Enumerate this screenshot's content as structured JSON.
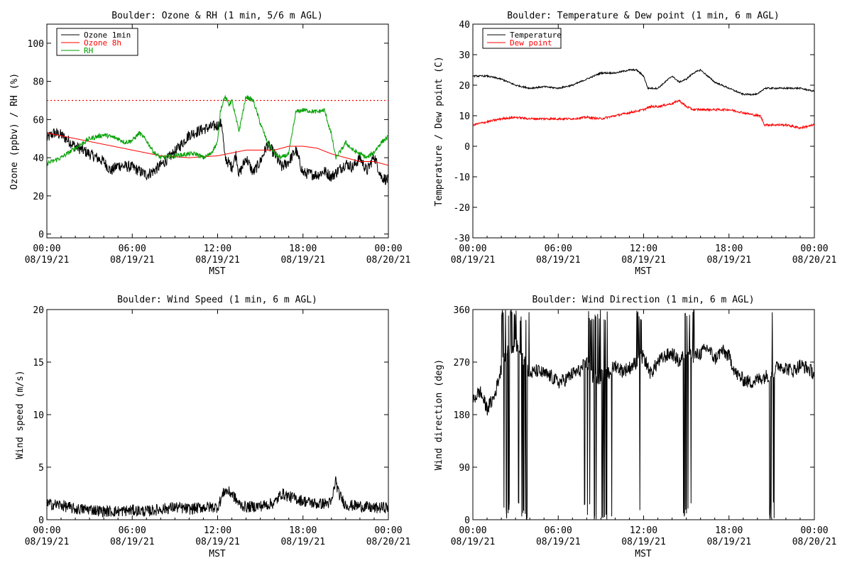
{
  "chart_data": [
    {
      "id": "ozone_rh",
      "type": "line",
      "title": "Boulder: Ozone & RH (1 min, 5/6 m AGL)",
      "xlabel": "MST",
      "ylabel": "Ozone (ppbv) / RH (%)",
      "xlim": [
        0,
        24
      ],
      "ylim": [
        -2,
        110
      ],
      "yticks": [
        0,
        20,
        40,
        60,
        80,
        100
      ],
      "xticks": [
        {
          "time": "00:00",
          "date": "08/19/21"
        },
        {
          "time": "06:00",
          "date": "08/19/21"
        },
        {
          "time": "12:00",
          "date": "08/19/21"
        },
        {
          "time": "18:00",
          "date": "08/19/21"
        },
        {
          "time": "00:00",
          "date": "08/20/21"
        }
      ],
      "legend_position": "top-left",
      "reference_line": {
        "y": 70,
        "color": "#ff0000",
        "style": "dotted"
      },
      "series": [
        {
          "name": "Ozone 1min",
          "color": "#000000",
          "noise": 3,
          "x": [
            0,
            0.5,
            1,
            2,
            3,
            4,
            4.5,
            5,
            6,
            7,
            7.5,
            8,
            9,
            10,
            11,
            12,
            12.3,
            12.5,
            13,
            13.3,
            13.5,
            14,
            14.5,
            15,
            15.5,
            16,
            16.5,
            17,
            17.5,
            18,
            19,
            19.5,
            20,
            21,
            21.5,
            22,
            22.5,
            23,
            23.5,
            24
          ],
          "y": [
            50,
            53,
            52,
            46,
            42,
            38,
            33,
            36,
            35,
            31,
            33,
            36,
            43,
            52,
            55,
            57,
            58,
            40,
            35,
            42,
            31,
            40,
            32,
            38,
            47,
            42,
            35,
            38,
            44,
            32,
            31,
            33,
            30,
            37,
            35,
            40,
            33,
            41,
            30,
            28
          ]
        },
        {
          "name": "Ozone 8h",
          "color": "#ff0000",
          "noise": 0,
          "x": [
            0,
            2,
            4,
            6,
            8,
            10,
            12,
            14,
            16,
            17,
            18,
            19,
            20,
            21,
            22,
            23,
            24
          ],
          "y": [
            53,
            50,
            47,
            44,
            41,
            40,
            41,
            44,
            44,
            46,
            46,
            45,
            42,
            40,
            38,
            38,
            36
          ]
        },
        {
          "name": "RH",
          "color": "#00a000",
          "noise": 1.2,
          "x": [
            0,
            1,
            2,
            3,
            4,
            5,
            5.5,
            6,
            6.5,
            7,
            7.5,
            8,
            9,
            10,
            10.5,
            11,
            11.5,
            12,
            12.2,
            12.5,
            12.8,
            13,
            13.3,
            13.5,
            14,
            14.5,
            15,
            15.5,
            16,
            16.5,
            17,
            17.5,
            18,
            19,
            19.5,
            20,
            20.3,
            20.7,
            21,
            21.5,
            22,
            22.5,
            23,
            23.5,
            24
          ],
          "y": [
            37,
            40,
            45,
            50,
            52,
            50,
            48,
            49,
            53,
            49,
            43,
            40,
            41,
            42,
            42,
            40,
            42,
            48,
            65,
            72,
            68,
            70,
            60,
            54,
            72,
            70,
            58,
            48,
            42,
            40,
            42,
            64,
            65,
            64,
            65,
            52,
            40,
            44,
            48,
            44,
            42,
            40,
            43,
            48,
            51
          ]
        }
      ]
    },
    {
      "id": "temp_dew",
      "type": "line",
      "title": "Boulder: Temperature & Dew point (1 min, 6 m AGL)",
      "xlabel": "MST",
      "ylabel": "Temperature / Dew point (C)",
      "xlim": [
        0,
        24
      ],
      "ylim": [
        -30,
        40
      ],
      "yticks": [
        -30,
        -20,
        -10,
        0,
        10,
        20,
        30,
        40
      ],
      "xticks": [
        {
          "time": "00:00",
          "date": "08/19/21"
        },
        {
          "time": "06:00",
          "date": "08/19/21"
        },
        {
          "time": "12:00",
          "date": "08/19/21"
        },
        {
          "time": "18:00",
          "date": "08/19/21"
        },
        {
          "time": "00:00",
          "date": "08/20/21"
        }
      ],
      "legend_position": "top-left",
      "series": [
        {
          "name": "Temperature",
          "color": "#000000",
          "noise": 0.25,
          "x": [
            0,
            1,
            2,
            3,
            4,
            5,
            6,
            7,
            8,
            9,
            10,
            11,
            11.5,
            12,
            12.3,
            13,
            13.5,
            14,
            14.5,
            15,
            15.5,
            16,
            16.5,
            17,
            18,
            19,
            20,
            20.5,
            21,
            22,
            23,
            24
          ],
          "y": [
            23,
            23,
            22,
            20,
            19,
            19.5,
            19,
            20,
            22,
            24,
            24,
            25,
            25,
            23,
            19,
            19,
            21,
            23,
            21,
            22,
            24,
            25,
            23,
            21,
            19,
            17,
            17,
            19,
            19,
            19,
            19,
            18
          ]
        },
        {
          "name": "Dew point",
          "color": "#ff0000",
          "noise": 0.35,
          "x": [
            0,
            1,
            2,
            3,
            4,
            5,
            6,
            7,
            8,
            9,
            10,
            11,
            12,
            12.5,
            13,
            14,
            14.5,
            15,
            15.5,
            16,
            17,
            18,
            19,
            20,
            20.2,
            20.5,
            21,
            22,
            23,
            24
          ],
          "y": [
            7,
            8,
            9,
            9.5,
            9,
            9,
            9,
            9,
            9.5,
            9,
            10,
            11,
            12,
            13,
            13,
            14,
            15,
            13,
            12,
            12,
            12,
            12,
            11,
            10,
            10,
            7,
            7,
            7,
            6,
            7
          ]
        }
      ]
    },
    {
      "id": "wind_speed",
      "type": "line",
      "title": "Boulder: Wind Speed (1 min, 6 m AGL)",
      "xlabel": "MST",
      "ylabel": "Wind speed (m/s)",
      "xlim": [
        0,
        24
      ],
      "ylim": [
        0,
        20
      ],
      "yticks": [
        0,
        5,
        10,
        15,
        20
      ],
      "xticks": [
        {
          "time": "00:00",
          "date": "08/19/21"
        },
        {
          "time": "06:00",
          "date": "08/19/21"
        },
        {
          "time": "12:00",
          "date": "08/19/21"
        },
        {
          "time": "18:00",
          "date": "08/19/21"
        },
        {
          "time": "00:00",
          "date": "08/20/21"
        }
      ],
      "series": [
        {
          "color": "#000000",
          "noise": 0.55,
          "floor": 0,
          "x": [
            0,
            1,
            2,
            3,
            4,
            5,
            6,
            7,
            8,
            9,
            10,
            11,
            12,
            12.5,
            13,
            13.5,
            14,
            15,
            16,
            16.5,
            17,
            18,
            19,
            20,
            20.3,
            20.5,
            21,
            22,
            23,
            24
          ],
          "y": [
            1.5,
            1.4,
            1.0,
            1.0,
            0.8,
            0.8,
            0.9,
            0.8,
            1.0,
            1.2,
            1.0,
            1.2,
            1.2,
            2.8,
            2.5,
            1.5,
            1.2,
            1.3,
            1.6,
            2.5,
            2.2,
            1.8,
            1.5,
            1.6,
            3.8,
            2.5,
            1.4,
            1.3,
            1.1,
            1.2
          ]
        }
      ]
    },
    {
      "id": "wind_direction",
      "type": "line",
      "title": "Boulder: Wind Direction (1 min, 6 m AGL)",
      "xlabel": "MST",
      "ylabel": "Wind direction (deg)",
      "xlim": [
        0,
        24
      ],
      "ylim": [
        0,
        360
      ],
      "yticks": [
        0,
        90,
        180,
        270,
        360
      ],
      "xticks": [
        {
          "time": "00:00",
          "date": "08/19/21"
        },
        {
          "time": "06:00",
          "date": "08/19/21"
        },
        {
          "time": "12:00",
          "date": "08/19/21"
        },
        {
          "time": "18:00",
          "date": "08/19/21"
        },
        {
          "time": "00:00",
          "date": "08/20/21"
        }
      ],
      "series": [
        {
          "color": "#000000",
          "noise": 12,
          "floor": 0,
          "ceil": 360,
          "spike_ranges": [
            [
              2,
              4
            ],
            [
              7.8,
              9.8
            ],
            [
              11.5,
              12.2
            ],
            [
              14.8,
              15.6
            ],
            [
              20.8,
              21.2
            ]
          ],
          "x": [
            0,
            0.5,
            1,
            1.5,
            2,
            2.5,
            3,
            3.5,
            4,
            4.5,
            5,
            5.5,
            6,
            6.5,
            7,
            7.5,
            8,
            8.5,
            9,
            9.5,
            10,
            10.5,
            11,
            11.5,
            12,
            12.5,
            13,
            13.5,
            14,
            14.5,
            15,
            15.5,
            16,
            16.5,
            17,
            17.5,
            18,
            18.5,
            19,
            19.5,
            20,
            20.5,
            21,
            21.5,
            22,
            22.5,
            23,
            23.5,
            24
          ],
          "y": [
            205,
            220,
            190,
            210,
            260,
            290,
            300,
            280,
            250,
            255,
            250,
            245,
            235,
            240,
            250,
            255,
            270,
            240,
            245,
            250,
            265,
            255,
            260,
            270,
            280,
            250,
            270,
            280,
            285,
            270,
            290,
            280,
            285,
            295,
            275,
            290,
            280,
            250,
            240,
            235,
            240,
            245,
            250,
            265,
            260,
            255,
            265,
            260,
            250
          ]
        }
      ]
    }
  ]
}
